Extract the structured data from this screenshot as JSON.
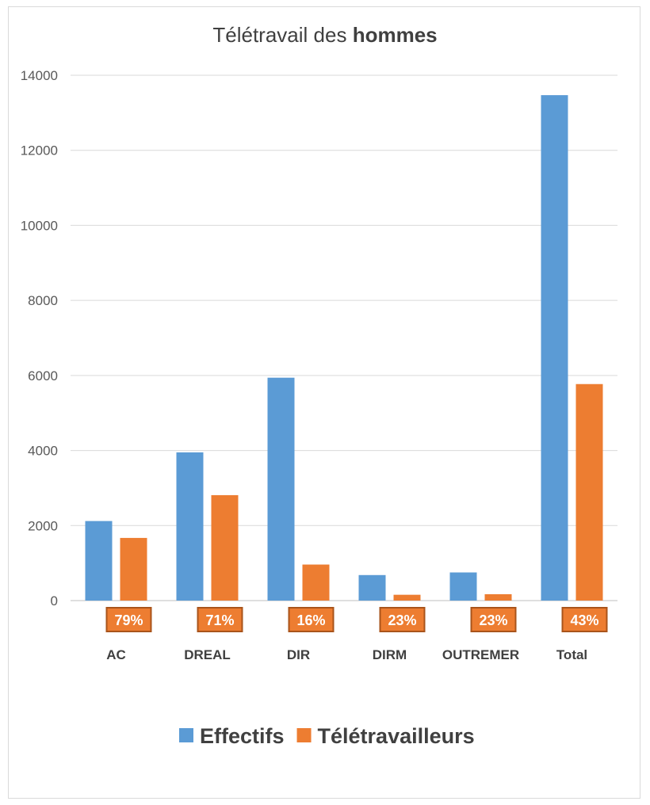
{
  "chart_data": {
    "type": "bar",
    "title_parts": [
      "Télétravail des ",
      "hommes"
    ],
    "xlabel": "",
    "ylabel": "",
    "ylim": [
      0,
      14000
    ],
    "yticks": [
      "0",
      "2000",
      "4000",
      "6000",
      "8000",
      "10000",
      "12000",
      "14000"
    ],
    "grid": true,
    "legend_position": "bottom",
    "categories": [
      "AC",
      "DREAL",
      "DIR",
      "DIRM",
      "OUTREMER",
      "Total"
    ],
    "series": [
      {
        "name": "Effectifs",
        "color": "#5b9bd5",
        "values": [
          2120,
          3950,
          5940,
          680,
          750,
          13470
        ]
      },
      {
        "name": "Télétravailleurs",
        "color": "#ed7d31",
        "values": [
          1670,
          2810,
          960,
          155,
          170,
          5770
        ]
      }
    ],
    "rate_labels": [
      "79%",
      "71%",
      "16%",
      "23%",
      "23%",
      "43%"
    ],
    "rate_label_color": "#ed7d31",
    "rate_label_border": "#a9541b"
  }
}
